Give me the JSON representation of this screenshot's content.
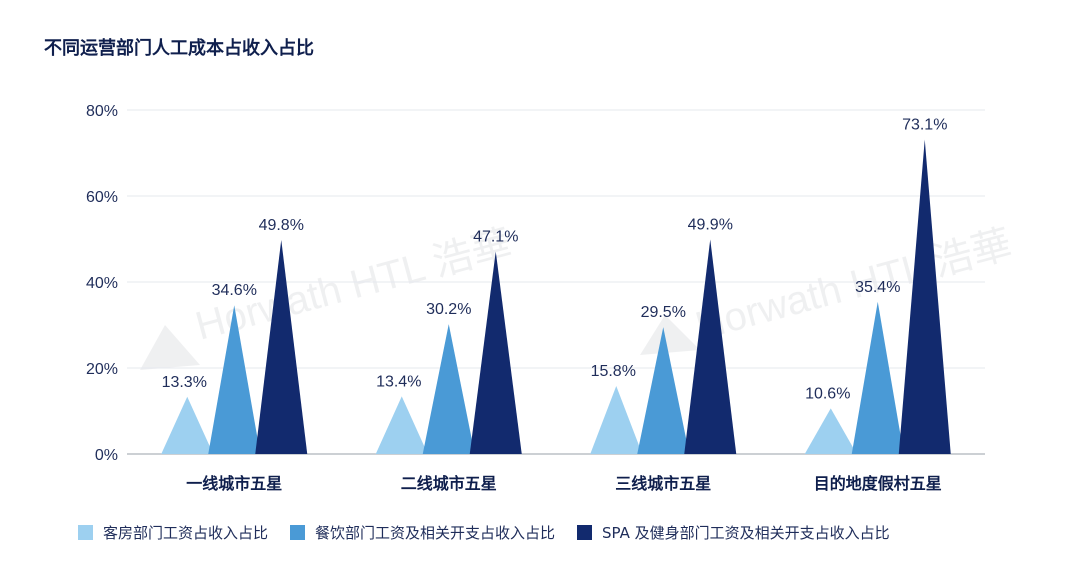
{
  "title": "不同运营部门人工成本占收入占比",
  "watermark": "Horwath HTL 浩華",
  "colors": {
    "rooms": "#9dd0f0",
    "fnb": "#4a9ad6",
    "spa": "#122a6e",
    "grid": "#e6e8ee",
    "axis": "#9aa0aa"
  },
  "chart_data": {
    "type": "bar",
    "title": "不同运营部门人工成本占收入占比",
    "categories": [
      "一线城市五星",
      "二线城市五星",
      "三线城市五星",
      "目的地度假村五星"
    ],
    "ylim": [
      0,
      80
    ],
    "yticks": [
      "0%",
      "20%",
      "40%",
      "60%",
      "80%"
    ],
    "ytick_values": [
      0,
      20,
      40,
      60,
      80
    ],
    "grid": true,
    "legend_position": "bottom",
    "series": [
      {
        "name": "客房部门工资占收入占比",
        "values": [
          13.3,
          13.4,
          15.8,
          10.6
        ],
        "labels": [
          "13.3%",
          "13.4%",
          "15.8%",
          "10.6%"
        ]
      },
      {
        "name": "餐饮部门工资及相关开支占收入占比",
        "values": [
          34.6,
          30.2,
          29.5,
          35.4
        ],
        "labels": [
          "34.6%",
          "30.2%",
          "29.5%",
          "35.4%"
        ]
      },
      {
        "name": "SPA 及健身部门工资及相关开支占收入占比",
        "values": [
          49.8,
          47.1,
          49.9,
          73.1
        ],
        "labels": [
          "49.8%",
          "47.1%",
          "49.9%",
          "73.1%"
        ]
      }
    ]
  }
}
